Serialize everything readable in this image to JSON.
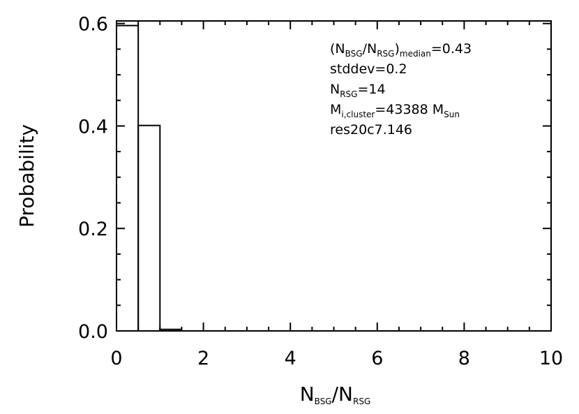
{
  "chart_data": {
    "type": "histogram",
    "bins": [
      0,
      0.5,
      1,
      1.5
    ],
    "values": [
      0.596,
      0.401,
      0.003
    ],
    "color": "#000000",
    "xlim": [
      0,
      10
    ],
    "xticks": [
      0,
      2,
      4,
      6,
      8,
      10
    ],
    "ylim": [
      0,
      0.605
    ],
    "yticks": [
      {
        "value": 0,
        "label": "0.0"
      },
      0.2,
      0.4,
      0.6
    ],
    "xlabel": [
      "N",
      "BSG",
      "/N",
      "RSG"
    ],
    "ylabel": "Probability",
    "annotations": [
      [
        "(N",
        "BSG",
        "/N",
        "RSG",
        ")",
        "median",
        "=0.43"
      ],
      [
        "stddev=0.2"
      ],
      [
        "N",
        "RSG",
        "=14"
      ],
      [
        "M",
        "i,cluster",
        "=43388 M",
        "Sun"
      ],
      [
        "res20c7.146"
      ]
    ]
  }
}
